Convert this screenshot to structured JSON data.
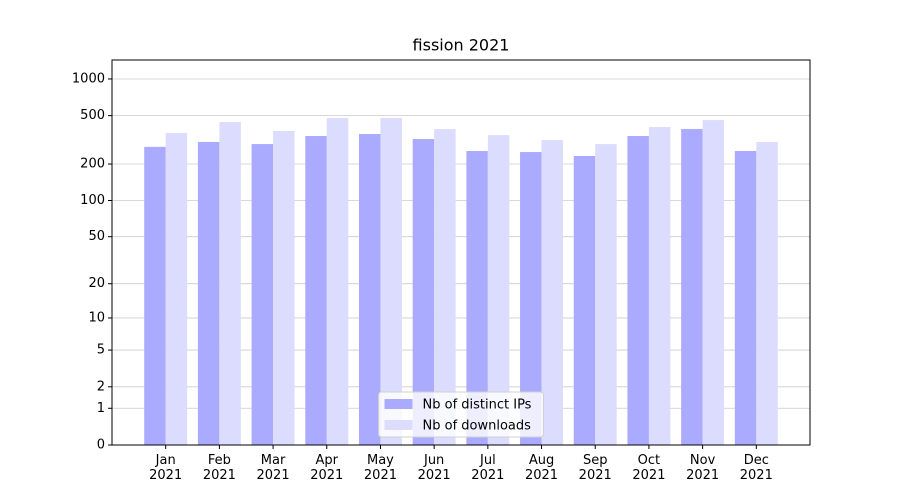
{
  "chart_data": {
    "type": "bar",
    "title": "fission 2021",
    "categories": [
      "Jan\n2021",
      "Feb\n2021",
      "Mar\n2021",
      "Apr\n2021",
      "May\n2021",
      "Jun\n2021",
      "Jul\n2021",
      "Aug\n2021",
      "Sep\n2021",
      "Oct\n2021",
      "Nov\n2021",
      "Dec\n2021"
    ],
    "series": [
      {
        "name": "Nb of distinct IPs",
        "color": "#aaaaff",
        "values": [
          277,
          304,
          292,
          340,
          353,
          321,
          256,
          251,
          233,
          340,
          388,
          256
        ]
      },
      {
        "name": "Nb of downloads",
        "color": "#dcdcff",
        "values": [
          360,
          443,
          374,
          478,
          478,
          388,
          346,
          315,
          292,
          403,
          460,
          304
        ]
      }
    ],
    "yscale": "log1p",
    "ylim": [
      0,
      1431
    ],
    "yticks": [
      0,
      1,
      2,
      5,
      10,
      20,
      50,
      100,
      200,
      500,
      1000
    ],
    "grid": true,
    "legend": "lower center"
  }
}
